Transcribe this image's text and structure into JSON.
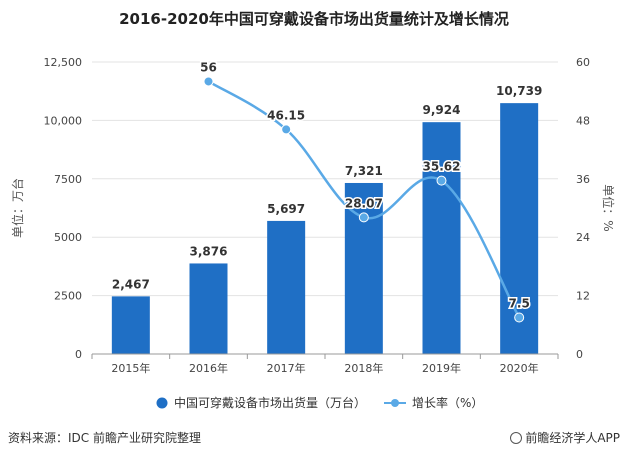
{
  "chart_data": {
    "type": "bar+line",
    "title": "2016-2020年中国可穿戴设备市场出货量统计及增长情况",
    "categories": [
      "2015年",
      "2016年",
      "2017年",
      "2018年",
      "2019年",
      "2020年"
    ],
    "series": [
      {
        "name": "中国可穿戴设备市场出货量（万台）",
        "kind": "bar",
        "axis": "left",
        "values": [
          2467,
          3876,
          5697,
          7321,
          9924,
          10739
        ],
        "labels": [
          "2,467",
          "3,876",
          "5,697",
          "7,321",
          "9,924",
          "10,739"
        ],
        "color": "#1f6fc5"
      },
      {
        "name": "增长率（%）",
        "kind": "line",
        "axis": "right",
        "values": [
          null,
          56,
          46.15,
          28.07,
          35.62,
          7.5
        ],
        "labels": [
          "",
          "56",
          "46.15",
          "28.07",
          "35.62",
          "7.5"
        ],
        "color": "#5aa9e6"
      }
    ],
    "y_left": {
      "label": "单位：万台",
      "range": [
        0,
        12500
      ],
      "ticks": [
        0,
        2500,
        5000,
        7500,
        10000,
        12500
      ],
      "tick_labels": [
        "0",
        "2500",
        "5000",
        "7500",
        "10,000",
        "12,500"
      ]
    },
    "y_right": {
      "label": "单位：%",
      "range": [
        0,
        60
      ],
      "ticks": [
        0,
        12,
        24,
        36,
        48,
        60
      ],
      "tick_labels": [
        "0",
        "12",
        "24",
        "36",
        "48",
        "60"
      ]
    },
    "grid": true,
    "legend_position": "bottom"
  },
  "footer": {
    "source": "资料来源：IDC 前瞻产业研究院整理",
    "brand": "前瞻经济学人APP"
  }
}
